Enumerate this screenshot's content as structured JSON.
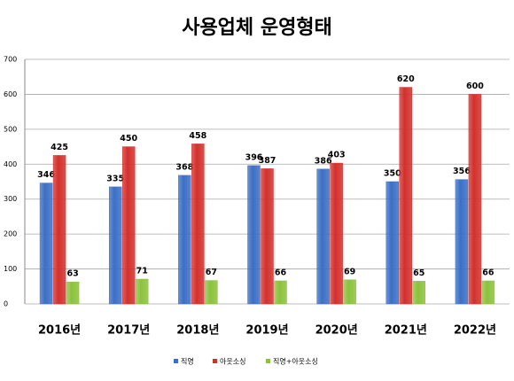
{
  "chart_data": {
    "type": "bar",
    "title": "사용업체 운영형태",
    "categories": [
      "2016년",
      "2017년",
      "2018년",
      "2019년",
      "2020년",
      "2021년",
      "2022년"
    ],
    "series": [
      {
        "name": "직영",
        "color": "#3b6fc6",
        "values": [
          346,
          335,
          368,
          396,
          386,
          350,
          356
        ]
      },
      {
        "name": "아웃소싱",
        "color": "#d3302c",
        "values": [
          425,
          450,
          458,
          387,
          403,
          620,
          600
        ]
      },
      {
        "name": "직영+아웃소싱",
        "color": "#8cc23c",
        "values": [
          63,
          71,
          67,
          66,
          69,
          65,
          66
        ]
      }
    ],
    "ylim": [
      0,
      700
    ],
    "yticks": [
      0,
      100,
      200,
      300,
      400,
      500,
      600,
      700
    ],
    "grid": true,
    "legend": "bottom"
  }
}
